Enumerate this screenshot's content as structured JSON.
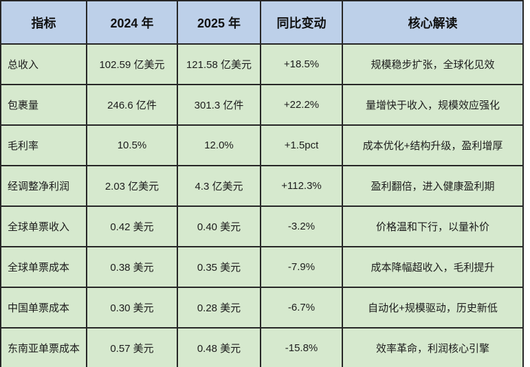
{
  "chart_data": {
    "type": "table",
    "title": "",
    "columns": [
      "指标",
      "2024 年",
      "2025 年",
      "同比变动",
      "核心解读"
    ],
    "rows": [
      [
        "总收入",
        "102.59 亿美元",
        "121.58 亿美元",
        "+18.5%",
        "规模稳步扩张，全球化见效"
      ],
      [
        "包裹量",
        "246.6 亿件",
        "301.3 亿件",
        "+22.2%",
        "量增快于收入，规模效应强化"
      ],
      [
        "毛利率",
        "10.5%",
        "12.0%",
        "+1.5pct",
        "成本优化+结构升级，盈利增厚"
      ],
      [
        "经调整净利润",
        "2.03 亿美元",
        "4.3 亿美元",
        "+112.3%",
        "盈利翻倍，进入健康盈利期"
      ],
      [
        "全球单票收入",
        "0.42 美元",
        "0.40 美元",
        "-3.2%",
        "价格温和下行，以量补价"
      ],
      [
        "全球单票成本",
        "0.38 美元",
        "0.35 美元",
        "-7.9%",
        "成本降幅超收入，毛利提升"
      ],
      [
        "中国单票成本",
        "0.30 美元",
        "0.28 美元",
        "-6.7%",
        "自动化+规模驱动，历史新低"
      ],
      [
        "东南亚单票成本",
        "0.57 美元",
        "0.48 美元",
        "-15.8%",
        "效率革命，利润核心引擎"
      ]
    ],
    "layout_hints": {
      "header_row": true,
      "grid": "full-borders",
      "last_row_clipped": true
    }
  },
  "table": {
    "headers": {
      "indicator": "指标",
      "y2024": "2024 年",
      "y2025": "2025 年",
      "yoy": "同比变动",
      "insight": "核心解读"
    },
    "rows": [
      {
        "indicator": "总收入",
        "y2024": "102.59 亿美元",
        "y2025": "121.58 亿美元",
        "yoy": "+18.5%",
        "insight": "规模稳步扩张，全球化见效"
      },
      {
        "indicator": "包裹量",
        "y2024": "246.6 亿件",
        "y2025": "301.3 亿件",
        "yoy": "+22.2%",
        "insight": "量增快于收入，规模效应强化"
      },
      {
        "indicator": "毛利率",
        "y2024": "10.5%",
        "y2025": "12.0%",
        "yoy": "+1.5pct",
        "insight": "成本优化+结构升级，盈利增厚"
      },
      {
        "indicator": "经调整净利润",
        "y2024": "2.03 亿美元",
        "y2025": "4.3 亿美元",
        "yoy": "+112.3%",
        "insight": "盈利翻倍，进入健康盈利期"
      },
      {
        "indicator": "全球单票收入",
        "y2024": "0.42 美元",
        "y2025": "0.40 美元",
        "yoy": "-3.2%",
        "insight": "价格温和下行，以量补价"
      },
      {
        "indicator": "全球单票成本",
        "y2024": "0.38 美元",
        "y2025": "0.35 美元",
        "yoy": "-7.9%",
        "insight": "成本降幅超收入，毛利提升"
      },
      {
        "indicator": "中国单票成本",
        "y2024": "0.30 美元",
        "y2025": "0.28 美元",
        "yoy": "-6.7%",
        "insight": "自动化+规模驱动，历史新低"
      },
      {
        "indicator": "东南亚单票成本",
        "y2024": "0.57 美元",
        "y2025": "0.48 美元",
        "yoy": "-15.8%",
        "insight": "效率革命，利润核心引擎"
      }
    ]
  },
  "colors": {
    "header_bg": "#bdd0e9",
    "cell_bg": "#d6e9ce",
    "border": "#262626",
    "text": "#1c1c1c"
  }
}
